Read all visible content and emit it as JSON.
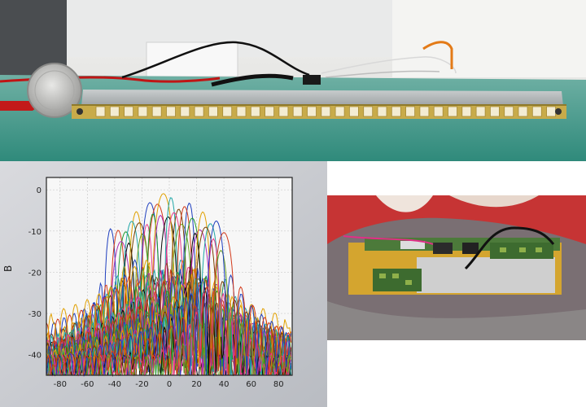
{
  "top_photo": {
    "subject": "antenna array board with coin"
  },
  "plot_photo": {
    "chart_data": {
      "type": "line",
      "xlabel": "",
      "ylabel": "B",
      "xlim": [
        -90,
        90
      ],
      "ylim": [
        -45,
        3
      ],
      "x_ticks": [
        "-80",
        "-60",
        "-40",
        "-20",
        "0",
        "20",
        "40",
        "60",
        "80"
      ],
      "y_ticks": [
        "0",
        "-10",
        "-20",
        "-30",
        "-40"
      ],
      "grid": true,
      "series_count": 32,
      "colors": [
        "#1f3fbf",
        "#d33a1b",
        "#1f9b2f",
        "#b02cb3",
        "#0a0a0a",
        "#e0a000",
        "#20a7a7",
        "#7a3f00",
        "#e83b8b",
        "#6aa020"
      ],
      "envelope_peak": 0,
      "envelope_edge": -20
    }
  },
  "board_photo": {
    "subject": "rf pcb module on red cloth"
  }
}
